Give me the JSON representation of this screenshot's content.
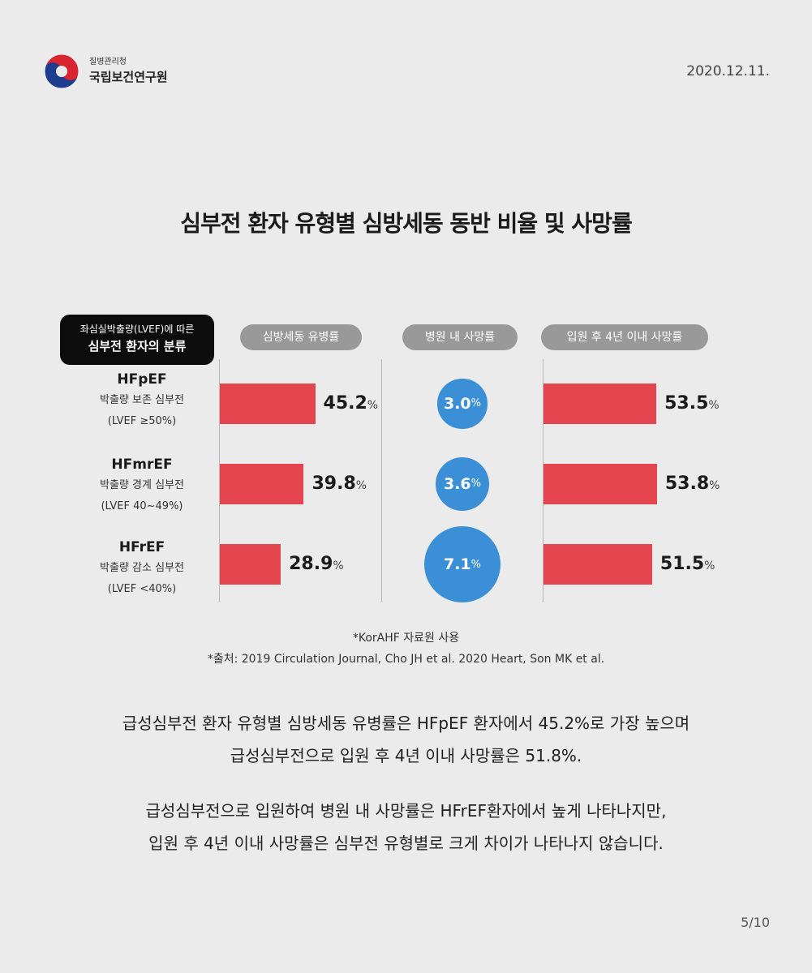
{
  "header": {
    "org_sub": "질병관리청",
    "org_main": "국립보건연구원",
    "date": "2020.12.11."
  },
  "title": "심부전 환자 유형별 심방세동 동반 비율 및 사망률",
  "category_header": {
    "line1": "좌심실박출량(LVEF)에 따른",
    "line2": "심부전 환자의 분류"
  },
  "chart_data": {
    "type": "bar",
    "categories": [
      "HFpEF",
      "HFmrEF",
      "HFrEF"
    ],
    "category_descriptions": [
      [
        "박출량 보존 심부전",
        "(LVEF  ≥50%)"
      ],
      [
        "박출량 경계 심부전",
        "(LVEF 40~49%)"
      ],
      [
        "박출량 감소 심부전",
        "(LVEF <40%)"
      ]
    ],
    "unit": "%",
    "series": [
      {
        "name": "심방세동 유병률",
        "type": "bar",
        "values": [
          45.2,
          39.8,
          28.9
        ],
        "labels": [
          "45.2",
          "39.8",
          "28.9"
        ]
      },
      {
        "name": "병원 내 사망률",
        "type": "bubble",
        "values": [
          3.0,
          3.6,
          7.1
        ],
        "labels": [
          "3.0",
          "3.6",
          "7.1"
        ]
      },
      {
        "name": "입원 후 4년 이내 사망률",
        "type": "bar",
        "values": [
          53.5,
          53.8,
          51.5
        ],
        "labels": [
          "53.5",
          "53.8",
          "51.5"
        ]
      }
    ],
    "colors": {
      "bar": "#e5454f",
      "bubble": "#3a8fd6",
      "pill": "#999999"
    }
  },
  "notes": [
    "*KorAHF 자료원 사용",
    "*출처: 2019 Circulation Journal, Cho JH et al. 2020 Heart, Son MK et al."
  ],
  "paragraphs": [
    [
      "급성심부전 환자 유형별 심방세동 유병률은 HFpEF 환자에서 45.2%로 가장 높으며",
      "급성심부전으로 입원 후 4년 이내 사망률은 51.8%."
    ],
    [
      "급성심부전으로 입원하여 병원 내 사망률은 HFrEF환자에서 높게 나타나지만,",
      "입원 후 4년 이내 사망률은 심부전 유형별로 크게 차이가 나타나지 않습니다."
    ]
  ],
  "page_number": "5/10"
}
